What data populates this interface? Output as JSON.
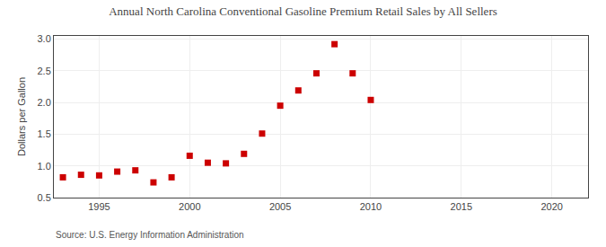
{
  "chart_data": {
    "type": "scatter",
    "title": "Annual North Carolina Conventional Gasoline Premium Retail Sales by All Sellers",
    "ylabel": "Dollars per Gallon",
    "annotations": [
      "Source: U.S. Energy Information Administration"
    ],
    "x": [
      1993,
      1994,
      1995,
      1996,
      1997,
      1998,
      1999,
      2000,
      2001,
      2002,
      2003,
      2004,
      2005,
      2006,
      2007,
      2008,
      2009,
      2010
    ],
    "values": [
      0.82,
      0.86,
      0.85,
      0.91,
      0.93,
      0.74,
      0.82,
      1.16,
      1.05,
      1.04,
      1.19,
      1.51,
      1.95,
      2.19,
      2.46,
      2.92,
      2.46,
      2.04
    ],
    "color": "#cc0000",
    "marker": "square",
    "xlim": [
      1992.5,
      2022
    ],
    "ylim": [
      0.5,
      3.05
    ],
    "xticks": [
      1995,
      2000,
      2005,
      2010,
      2015,
      2020
    ],
    "yticks": [
      0.5,
      {
        "value": 1,
        "label": "1.0"
      },
      1.5,
      {
        "value": 2,
        "label": "2.0"
      },
      2.5,
      {
        "value": 3,
        "label": "3.0"
      }
    ],
    "grid": true
  }
}
